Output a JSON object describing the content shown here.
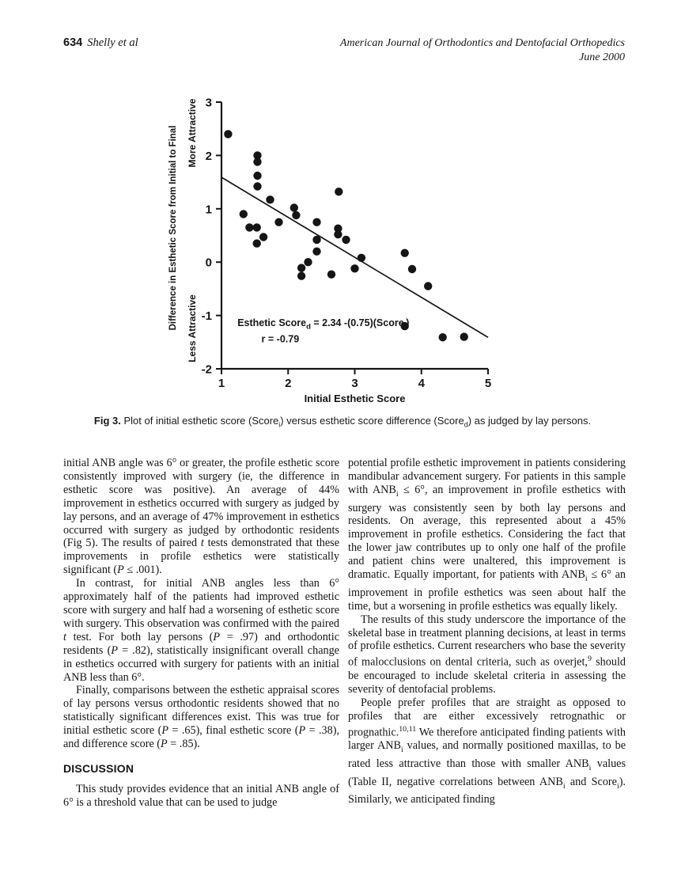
{
  "header": {
    "page_number": "634",
    "authors": "Shelly et al",
    "journal": "American Journal of Orthodontics and Dentofacial Orthopedics",
    "issue": "June 2000"
  },
  "figure": {
    "label": "Fig 3.",
    "caption_html": " Plot of initial esthetic score (Score<sub>i</sub>) versus esthetic score difference (Score<sub>d</sub>) as judged by lay persons."
  },
  "chart_data": {
    "type": "scatter",
    "title": "",
    "xlabel": "Initial Esthetic Score",
    "ylabel": "Difference in Esthetic Score from Initial to Final",
    "ylabel_top": "More Attractive",
    "ylabel_bottom": "Less Attractive",
    "xlim": [
      1,
      5
    ],
    "ylim": [
      -2,
      3
    ],
    "xticks": [
      1,
      2,
      3,
      4,
      5
    ],
    "yticks": [
      -2,
      -1,
      0,
      1,
      2,
      3
    ],
    "grid": false,
    "legend": "none",
    "marker_color": "#151515",
    "points": [
      [
        1.1,
        2.4
      ],
      [
        1.54,
        2.0
      ],
      [
        1.54,
        1.88
      ],
      [
        1.54,
        1.62
      ],
      [
        1.54,
        1.42
      ],
      [
        1.33,
        0.9
      ],
      [
        1.42,
        0.65
      ],
      [
        1.53,
        0.65
      ],
      [
        1.63,
        0.47
      ],
      [
        1.53,
        0.35
      ],
      [
        1.73,
        1.17
      ],
      [
        1.86,
        0.75
      ],
      [
        2.09,
        1.02
      ],
      [
        2.12,
        0.88
      ],
      [
        2.2,
        -0.11
      ],
      [
        2.2,
        -0.26
      ],
      [
        2.3,
        0.0
      ],
      [
        2.43,
        0.2
      ],
      [
        2.43,
        0.42
      ],
      [
        2.43,
        0.75
      ],
      [
        2.65,
        -0.23
      ],
      [
        2.76,
        1.32
      ],
      [
        2.75,
        0.63
      ],
      [
        2.75,
        0.52
      ],
      [
        2.87,
        0.42
      ],
      [
        3.0,
        -0.12
      ],
      [
        3.1,
        0.08
      ],
      [
        3.75,
        0.17
      ],
      [
        3.75,
        -1.2
      ],
      [
        3.86,
        -0.13
      ],
      [
        4.1,
        -0.45
      ],
      [
        4.32,
        -1.41
      ],
      [
        4.64,
        -1.4
      ]
    ],
    "regression": {
      "intercept": 2.34,
      "slope": -0.75,
      "x_start": 1,
      "x_end": 5
    },
    "annotation": {
      "x": 1.24,
      "y": -1.2,
      "line1": [
        {
          "t": "Esthetic Score"
        },
        {
          "t": "d",
          "sub": true
        },
        {
          "t": " = 2.34 -(0.75)(Score"
        },
        {
          "t": "i",
          "sub": true
        },
        {
          "t": ")"
        }
      ],
      "r_x": 1.6,
      "r_y": -1.5,
      "line2": "r = -0.79"
    }
  },
  "body": {
    "left_blocks": [
      {
        "type": "p",
        "indent": false,
        "html": "initial ANB angle was 6&#176; or greater, the profile esthetic score consistently improved with surgery (ie, the difference in esthetic score was positive). An average of 44% improvement in esthetics occurred with surgery as judged by lay persons, and an average of 47% improvement in esthetics occurred with surgery as judged by orthodontic residents (Fig 5). The results of paired <i>t</i> tests demonstrated that these improvements in profile esthetics were statistically significant (<i>P</i> &#8804; .001)."
      },
      {
        "type": "p",
        "indent": true,
        "html": "In contrast, for initial ANB angles less than 6&#176; approximately half of the patients had improved esthetic score with surgery and half had a worsening of esthetic score with surgery. This observation was confirmed with the paired <i>t</i> test. For both lay persons (<i>P</i> = .97) and orthodontic residents (<i>P</i> = .82), statistically insignificant overall change in esthetics occurred with surgery for patients with an initial ANB less than 6&#176;."
      },
      {
        "type": "p",
        "indent": true,
        "html": "Finally, comparisons between the esthetic appraisal scores of lay persons versus orthodontic residents showed that no statistically significant differences exist. This was true for initial esthetic score (<i>P</i> = .65), final esthetic score (<i>P</i> = .38), and difference score (<i>P</i> = .85)."
      },
      {
        "type": "heading",
        "text": "DISCUSSION"
      },
      {
        "type": "p",
        "indent": true,
        "html": "This study provides evidence that an initial ANB angle of 6&#176; is a threshold value that can be used to judge"
      }
    ],
    "right_blocks": [
      {
        "type": "p",
        "indent": false,
        "html": "potential profile esthetic improvement in patients considering mandibular advancement surgery. For patients in this sample with ANB<sub>i</sub> &#8804; 6&#176;, an improvement in profile esthetics with surgery was consistently seen by both lay persons and residents. On average, this represented about a 45% improvement in profile esthetics. Considering the fact that the lower jaw contributes up to only one half of the profile and patient chins were unaltered, this improvement is dramatic. Equally important, for patients with ANB<sub>i</sub> &#8804; 6&#176; an improvement in profile esthetics was seen about half the time, but a worsening in profile esthetics was equally likely."
      },
      {
        "type": "p",
        "indent": true,
        "html": "The results of this study underscore the importance of the skeletal base in treatment planning decisions, at least in terms of profile esthetics. Current researchers who base the severity of malocclusions on dental criteria, such as overjet,<sup>9</sup> should be encouraged to include skeletal criteria in assessing the severity of dentofacial problems."
      },
      {
        "type": "p",
        "indent": true,
        "html": "People prefer profiles that are straight as opposed to profiles that are either excessively retrognathic or prognathic.<sup>10,11</sup> We therefore anticipated finding patients with larger ANB<sub>i</sub> values, and normally positioned maxillas, to be rated less attractive than those with smaller ANB<sub>i</sub> values (Table II, negative correlations between ANB<sub>i</sub> and Score<sub>i</sub>). Similarly, we anticipated finding"
      }
    ]
  }
}
